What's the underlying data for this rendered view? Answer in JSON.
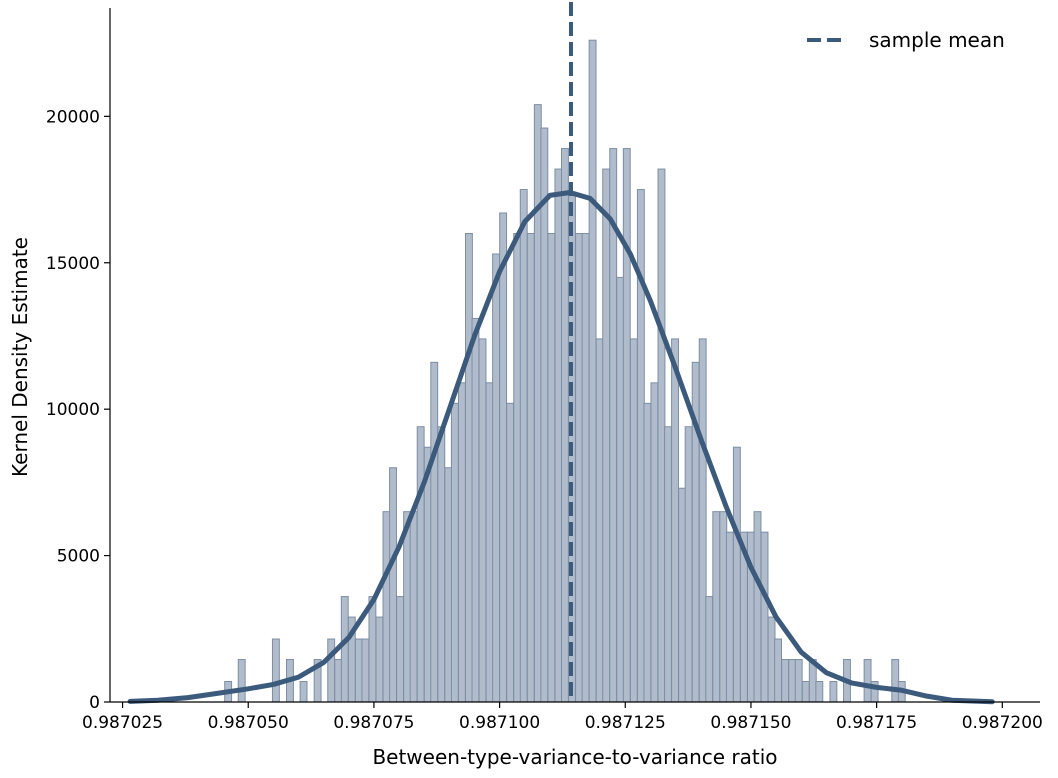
{
  "chart_data": {
    "type": "bar",
    "title": "",
    "xlabel": "Between-type-variance-to-variance ratio",
    "ylabel": "Kernel Density Estimate",
    "xlim": [
      0.9870225,
      0.9872075
    ],
    "ylim": [
      0,
      23700
    ],
    "x_ticks": [
      0.987025,
      0.98705,
      0.987075,
      0.9871,
      0.987125,
      0.98715,
      0.987175,
      0.9872
    ],
    "x_tick_labels": [
      "0.987025",
      "0.987050",
      "0.987075",
      "0.987100",
      "0.987125",
      "0.987150",
      "0.987175",
      "0.987200"
    ],
    "y_ticks": [
      0,
      5000,
      10000,
      15000,
      20000
    ],
    "y_tick_labels": [
      "0",
      "5000",
      "10000",
      "15000",
      "20000"
    ],
    "grid": false,
    "legend_position": "top-right",
    "colors": {
      "bar_fill": "#b0bccb",
      "bar_edge": "#7d8ea3",
      "curve": "#3c5a7c",
      "mean_line": "#3c5a7c"
    },
    "histogram": {
      "bin_width": 1.37e-06,
      "bins": [
        {
          "x": 0.987046,
          "y": 700
        },
        {
          "x": 0.9870487,
          "y": 1450
        },
        {
          "x": 0.9870555,
          "y": 2150
        },
        {
          "x": 0.9870583,
          "y": 1450
        },
        {
          "x": 0.987061,
          "y": 700
        },
        {
          "x": 0.9870638,
          "y": 1450
        },
        {
          "x": 0.9870665,
          "y": 2150
        },
        {
          "x": 0.9870679,
          "y": 1450
        },
        {
          "x": 0.9870692,
          "y": 3600
        },
        {
          "x": 0.9870706,
          "y": 2900
        },
        {
          "x": 0.987072,
          "y": 2150
        },
        {
          "x": 0.9870733,
          "y": 2150
        },
        {
          "x": 0.9870747,
          "y": 3600
        },
        {
          "x": 0.9870761,
          "y": 2900
        },
        {
          "x": 0.9870775,
          "y": 6500
        },
        {
          "x": 0.9870788,
          "y": 8000
        },
        {
          "x": 0.9870802,
          "y": 3600
        },
        {
          "x": 0.9870816,
          "y": 6500
        },
        {
          "x": 0.9870829,
          "y": 6500
        },
        {
          "x": 0.9870843,
          "y": 9400
        },
        {
          "x": 0.9870857,
          "y": 8700
        },
        {
          "x": 0.987087,
          "y": 11600
        },
        {
          "x": 0.9870884,
          "y": 9400
        },
        {
          "x": 0.9870898,
          "y": 8000
        },
        {
          "x": 0.9870911,
          "y": 10200
        },
        {
          "x": 0.9870925,
          "y": 10900
        },
        {
          "x": 0.9870939,
          "y": 16000
        },
        {
          "x": 0.9870952,
          "y": 13100
        },
        {
          "x": 0.9870966,
          "y": 12400
        },
        {
          "x": 0.987098,
          "y": 10900
        },
        {
          "x": 0.9870993,
          "y": 15300
        },
        {
          "x": 0.9871007,
          "y": 16700
        },
        {
          "x": 0.9871021,
          "y": 10200
        },
        {
          "x": 0.9871035,
          "y": 16000
        },
        {
          "x": 0.9871048,
          "y": 17500
        },
        {
          "x": 0.9871062,
          "y": 16000
        },
        {
          "x": 0.9871076,
          "y": 20400
        },
        {
          "x": 0.9871089,
          "y": 19600
        },
        {
          "x": 0.9871103,
          "y": 16000
        },
        {
          "x": 0.9871117,
          "y": 18200
        },
        {
          "x": 0.987113,
          "y": 18900
        },
        {
          "x": 0.9871144,
          "y": 17400
        },
        {
          "x": 0.9871158,
          "y": 16000
        },
        {
          "x": 0.9871171,
          "y": 16000
        },
        {
          "x": 0.9871185,
          "y": 22600
        },
        {
          "x": 0.9871199,
          "y": 12400
        },
        {
          "x": 0.9871212,
          "y": 18200
        },
        {
          "x": 0.9871226,
          "y": 18900
        },
        {
          "x": 0.987124,
          "y": 14500
        },
        {
          "x": 0.9871253,
          "y": 18900
        },
        {
          "x": 0.9871267,
          "y": 12400
        },
        {
          "x": 0.9871281,
          "y": 17500
        },
        {
          "x": 0.9871294,
          "y": 10200
        },
        {
          "x": 0.9871308,
          "y": 10900
        },
        {
          "x": 0.9871322,
          "y": 18200
        },
        {
          "x": 0.9871335,
          "y": 9400
        },
        {
          "x": 0.9871349,
          "y": 12400
        },
        {
          "x": 0.9871363,
          "y": 7300
        },
        {
          "x": 0.9871376,
          "y": 9400
        },
        {
          "x": 0.987139,
          "y": 11600
        },
        {
          "x": 0.9871404,
          "y": 12400
        },
        {
          "x": 0.9871417,
          "y": 3600
        },
        {
          "x": 0.9871431,
          "y": 6500
        },
        {
          "x": 0.9871445,
          "y": 6500
        },
        {
          "x": 0.9871458,
          "y": 5800
        },
        {
          "x": 0.9871472,
          "y": 8700
        },
        {
          "x": 0.9871486,
          "y": 5800
        },
        {
          "x": 0.98715,
          "y": 5800
        },
        {
          "x": 0.9871513,
          "y": 6500
        },
        {
          "x": 0.9871527,
          "y": 5800
        },
        {
          "x": 0.9871541,
          "y": 2900
        },
        {
          "x": 0.9871554,
          "y": 2150
        },
        {
          "x": 0.9871568,
          "y": 1450
        },
        {
          "x": 0.9871582,
          "y": 1450
        },
        {
          "x": 0.9871595,
          "y": 1450
        },
        {
          "x": 0.9871609,
          "y": 700
        },
        {
          "x": 0.9871623,
          "y": 1450
        },
        {
          "x": 0.9871636,
          "y": 700
        },
        {
          "x": 0.9871664,
          "y": 700
        },
        {
          "x": 0.9871691,
          "y": 1450
        },
        {
          "x": 0.9871732,
          "y": 1450
        },
        {
          "x": 0.9871746,
          "y": 700
        },
        {
          "x": 0.9871787,
          "y": 1450
        },
        {
          "x": 0.98718,
          "y": 700
        }
      ]
    },
    "series": [
      {
        "kind": "kde-line",
        "points": [
          [
            0.9870265,
            20
          ],
          [
            0.987032,
            60
          ],
          [
            0.987038,
            150
          ],
          [
            0.987044,
            300
          ],
          [
            0.98705,
            450
          ],
          [
            0.987055,
            600
          ],
          [
            0.98706,
            850
          ],
          [
            0.987065,
            1350
          ],
          [
            0.98707,
            2200
          ],
          [
            0.987075,
            3500
          ],
          [
            0.98708,
            5300
          ],
          [
            0.987085,
            7500
          ],
          [
            0.98709,
            10000
          ],
          [
            0.987095,
            12500
          ],
          [
            0.9871,
            14700
          ],
          [
            0.987105,
            16400
          ],
          [
            0.98711,
            17300
          ],
          [
            0.987114,
            17400
          ],
          [
            0.987118,
            17200
          ],
          [
            0.987122,
            16500
          ],
          [
            0.987126,
            15300
          ],
          [
            0.98713,
            13700
          ],
          [
            0.987135,
            11400
          ],
          [
            0.98714,
            9000
          ],
          [
            0.987145,
            6700
          ],
          [
            0.98715,
            4600
          ],
          [
            0.987155,
            2900
          ],
          [
            0.98716,
            1700
          ],
          [
            0.987165,
            1000
          ],
          [
            0.98717,
            650
          ],
          [
            0.987175,
            500
          ],
          [
            0.98718,
            400
          ],
          [
            0.987185,
            200
          ],
          [
            0.98719,
            60
          ],
          [
            0.987198,
            10
          ]
        ]
      },
      {
        "name": "sample mean",
        "kind": "vertical-line",
        "x": 0.9871142
      }
    ]
  }
}
